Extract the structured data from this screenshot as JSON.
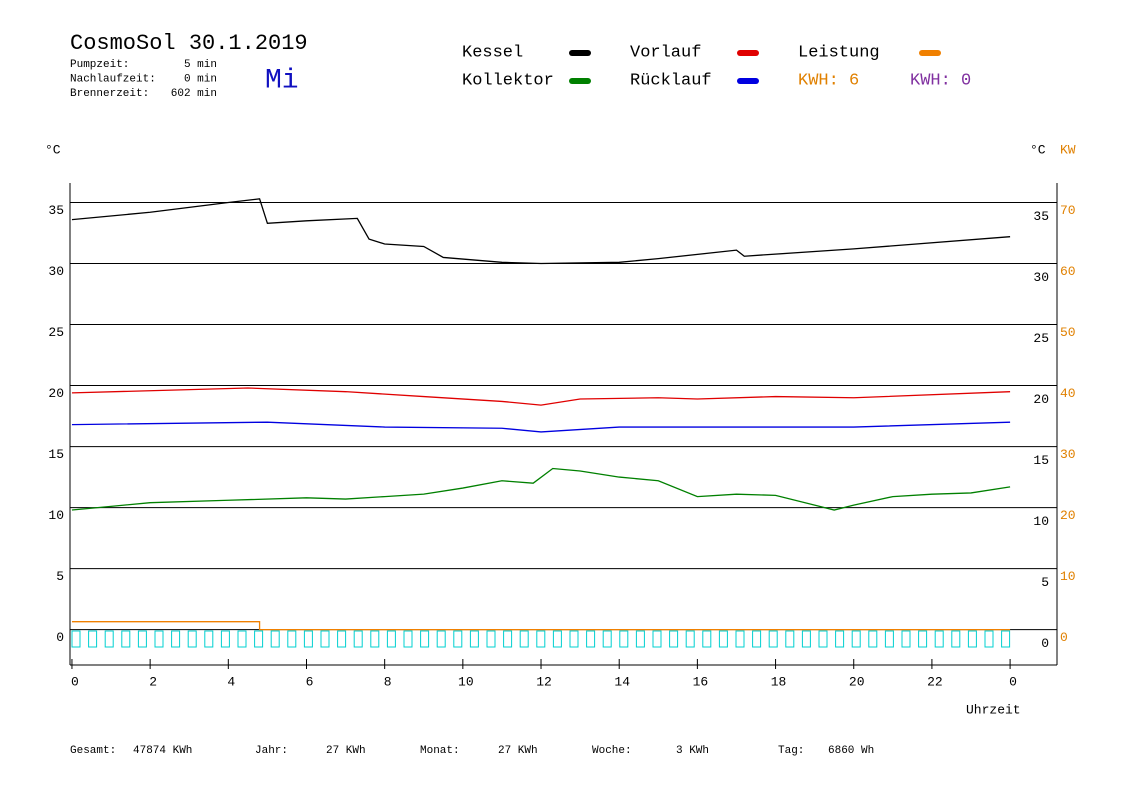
{
  "header": {
    "title": "CosmoSol 30.1.2019",
    "weekday": "Mi",
    "stats": [
      {
        "label": "Pumpzeit:",
        "value": "5 min"
      },
      {
        "label": "Nachlaufzeit:",
        "value": "0 min"
      },
      {
        "label": "Brennerzeit:",
        "value": "602 min"
      }
    ]
  },
  "chart_data": {
    "type": "line",
    "y_label": "°C",
    "y2_label": "°C",
    "y3_label": "KW",
    "x_label": "Uhrzeit",
    "xlim": [
      -0.05,
      25.2
    ],
    "xticks": [
      0,
      2,
      4,
      6,
      8,
      10,
      12,
      14,
      16,
      18,
      20,
      22,
      {
        "value": 24,
        "label": "0"
      }
    ],
    "ylim": [
      -2.9,
      36.6
    ],
    "yticks": [
      0,
      5,
      10,
      15,
      20,
      25,
      30,
      35
    ],
    "y2lim": [
      -5.8,
      73.2
    ],
    "y2ticks": [
      0,
      10,
      20,
      30,
      40,
      50,
      60,
      70
    ],
    "grid": true,
    "series": [
      {
        "name": "Kessel",
        "color": "#000000",
        "x": [
          0,
          2,
          4,
          4.8,
          5,
          6,
          7.3,
          7.6,
          8,
          9,
          9.5,
          11,
          12,
          14,
          15,
          17,
          17.2,
          20,
          24
        ],
        "values": [
          33.6,
          34.2,
          35.0,
          35.3,
          33.3,
          33.5,
          33.7,
          32.0,
          31.6,
          31.4,
          30.5,
          30.1,
          30.0,
          30.1,
          30.4,
          31.1,
          30.6,
          31.2,
          32.2
        ]
      },
      {
        "name": "Vorlauf",
        "color": "#e00000",
        "x": [
          0,
          4.5,
          7,
          9,
          11,
          12,
          13,
          15,
          16,
          18,
          20,
          24
        ],
        "values": [
          19.4,
          19.8,
          19.5,
          19.1,
          18.7,
          18.4,
          18.9,
          19.0,
          18.9,
          19.1,
          19.0,
          19.5
        ]
      },
      {
        "name": "Leistung",
        "color": "#f08000",
        "axis": "y2",
        "x": [
          0,
          4.8,
          4.8,
          24
        ],
        "values": [
          1.3,
          1.3,
          0,
          0
        ]
      },
      {
        "name": "Kollektor",
        "color": "#008000",
        "x": [
          0,
          1,
          2,
          4,
          6,
          7,
          8,
          9,
          10,
          11,
          11.8,
          12.3,
          13,
          14,
          15,
          16,
          17,
          18,
          19,
          19.5,
          20,
          21,
          22,
          23,
          24
        ],
        "values": [
          9.8,
          10.1,
          10.4,
          10.6,
          10.8,
          10.7,
          10.9,
          11.1,
          11.6,
          12.2,
          12.0,
          13.2,
          13.0,
          12.5,
          12.2,
          10.9,
          11.1,
          11.0,
          10.2,
          9.8,
          10.2,
          10.9,
          11.1,
          11.2,
          11.7
        ]
      },
      {
        "name": "Rücklauf",
        "color": "#0000e0",
        "x": [
          0,
          5,
          8,
          11,
          12,
          14,
          16,
          20,
          24
        ],
        "values": [
          16.8,
          17.0,
          16.6,
          16.5,
          16.2,
          16.6,
          16.6,
          16.6,
          17.0
        ]
      }
    ],
    "kwh": [
      {
        "text": "KWH: 6",
        "color": "#e08000"
      },
      {
        "text": "KWH: 0",
        "color": "#8030a0"
      }
    ]
  },
  "footer": [
    {
      "label": "Gesamt:",
      "value": "47874 KWh"
    },
    {
      "label": "Jahr:",
      "value": "27 KWh"
    },
    {
      "label": "Monat:",
      "value": "27 KWh"
    },
    {
      "label": "Woche:",
      "value": "3 KWh"
    },
    {
      "label": "Tag:",
      "value": "6860 Wh"
    }
  ]
}
